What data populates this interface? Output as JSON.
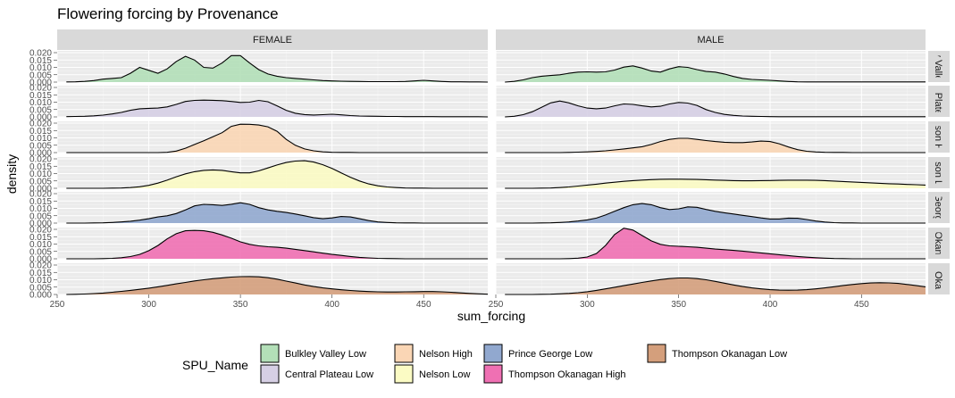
{
  "chart_data": {
    "type": "area",
    "title": "Flowering forcing by Provenance",
    "xlabel": "sum_forcing",
    "ylabel": "density",
    "xlim": [
      250,
      485
    ],
    "ylim": [
      0,
      0.02
    ],
    "x_ticks": [
      250,
      300,
      350,
      400,
      450
    ],
    "y_ticks": [
      "0.000",
      "0.005",
      "0.010",
      "0.015",
      "0.020"
    ],
    "columns": [
      "FEMALE",
      "MALE"
    ],
    "rows": [
      "y Valle",
      "l Plate",
      "lson H",
      "lson L",
      "Georg",
      "Okan",
      "n Okan"
    ],
    "legend": {
      "title": "SPU_Name",
      "entries": [
        {
          "name": "Bulkley Valley Low",
          "color": "#b3dfb8"
        },
        {
          "name": "Central Plateau Low",
          "color": "#d6cfe4"
        },
        {
          "name": "Nelson High",
          "color": "#fad6b5"
        },
        {
          "name": "Nelson Low",
          "color": "#fbfbc4"
        },
        {
          "name": "Prince George Low",
          "color": "#91a8cf"
        },
        {
          "name": "Thompson Okanagan High",
          "color": "#ef70b3"
        },
        {
          "name": "Thompson Okanagan Low",
          "color": "#d49f7c"
        }
      ]
    },
    "x": [
      255,
      260,
      265,
      270,
      275,
      280,
      285,
      290,
      295,
      300,
      305,
      310,
      315,
      320,
      325,
      330,
      335,
      340,
      345,
      350,
      355,
      360,
      365,
      370,
      375,
      380,
      385,
      390,
      395,
      400,
      405,
      410,
      415,
      420,
      425,
      430,
      435,
      440,
      445,
      450,
      455,
      460,
      465,
      470,
      475,
      480,
      485
    ],
    "panels": [
      {
        "row": 0,
        "col": 0,
        "y": [
          0.0001,
          0.0002,
          0.0005,
          0.001,
          0.002,
          0.0025,
          0.003,
          0.006,
          0.01,
          0.008,
          0.006,
          0.009,
          0.014,
          0.0175,
          0.015,
          0.01,
          0.0095,
          0.013,
          0.018,
          0.018,
          0.013,
          0.0085,
          0.0055,
          0.004,
          0.003,
          0.0025,
          0.002,
          0.0015,
          0.001,
          0.0008,
          0.0006,
          0.0005,
          0.0004,
          0.0003,
          0.0003,
          0.0003,
          0.0003,
          0.0004,
          0.0008,
          0.0012,
          0.0008,
          0.0004,
          0.0002,
          0.0002,
          0.0001,
          0.0001,
          0
        ]
      },
      {
        "row": 0,
        "col": 1,
        "y": [
          0,
          0.0005,
          0.0015,
          0.003,
          0.004,
          0.0045,
          0.005,
          0.006,
          0.0068,
          0.007,
          0.0068,
          0.007,
          0.0082,
          0.0102,
          0.011,
          0.0095,
          0.0075,
          0.0068,
          0.009,
          0.0105,
          0.01,
          0.0085,
          0.0072,
          0.0068,
          0.0055,
          0.0038,
          0.0025,
          0.0018,
          0.0015,
          0.0012,
          0.0008,
          0.0004,
          0.0002,
          0.0001,
          0.0001,
          0.0001,
          0.0001,
          0.0001,
          0.0001,
          0.0001,
          0.0001,
          0.0001,
          0.0001,
          0.0001,
          0.0001,
          0.0001,
          0.0001
        ]
      },
      {
        "row": 1,
        "col": 0,
        "y": [
          0.0002,
          0.0003,
          0.0004,
          0.0007,
          0.0012,
          0.002,
          0.003,
          0.0045,
          0.0055,
          0.0058,
          0.006,
          0.0068,
          0.0085,
          0.0105,
          0.0112,
          0.0114,
          0.0113,
          0.011,
          0.0105,
          0.0098,
          0.01,
          0.0112,
          0.0103,
          0.0075,
          0.0045,
          0.0025,
          0.0016,
          0.0013,
          0.0015,
          0.0018,
          0.0014,
          0.0009,
          0.0006,
          0.0005,
          0.0004,
          0.0003,
          0.0003,
          0.0002,
          0.0002,
          0.0002,
          0.0002,
          0.0001,
          0.0001,
          0.0001,
          0.0001,
          0.0001,
          0
        ]
      },
      {
        "row": 1,
        "col": 1,
        "y": [
          0,
          0.0004,
          0.0015,
          0.0035,
          0.0065,
          0.0095,
          0.0108,
          0.0095,
          0.0075,
          0.006,
          0.0055,
          0.006,
          0.0075,
          0.0088,
          0.0085,
          0.0075,
          0.0068,
          0.0072,
          0.0088,
          0.0098,
          0.0094,
          0.0078,
          0.005,
          0.003,
          0.0017,
          0.001,
          0.0006,
          0.0004,
          0.0003,
          0.0002,
          0.0001,
          0.0001,
          0.0001,
          0.0001,
          0.0001,
          0.0001,
          0.0001,
          0.0001,
          0.0001,
          0.0001,
          0.0001,
          0.0001,
          0.0001,
          0.0001,
          0.0001,
          0.0001,
          0.0001
        ]
      },
      {
        "row": 2,
        "col": 0,
        "y": [
          0,
          0,
          0,
          0,
          0,
          0,
          0,
          0,
          0,
          0,
          0,
          0.0002,
          0.001,
          0.003,
          0.0055,
          0.008,
          0.0108,
          0.0135,
          0.0178,
          0.0193,
          0.0192,
          0.0187,
          0.0175,
          0.0145,
          0.009,
          0.005,
          0.0025,
          0.0012,
          0.0005,
          0.0002,
          0.0001,
          0.0001,
          0,
          0,
          0,
          0,
          0,
          0,
          0,
          0,
          0,
          0,
          0,
          0,
          0,
          0,
          0
        ]
      },
      {
        "row": 2,
        "col": 1,
        "y": [
          0,
          0,
          0,
          0,
          0,
          0,
          0,
          0.0001,
          0.0003,
          0.0005,
          0.0008,
          0.0012,
          0.0018,
          0.0025,
          0.0032,
          0.004,
          0.0055,
          0.0075,
          0.009,
          0.0097,
          0.0097,
          0.009,
          0.0082,
          0.0075,
          0.007,
          0.0068,
          0.0068,
          0.0072,
          0.0078,
          0.0075,
          0.006,
          0.0038,
          0.002,
          0.0009,
          0.0004,
          0.0002,
          0.0001,
          0.0001,
          0,
          0,
          0,
          0,
          0,
          0,
          0,
          0,
          0
        ]
      },
      {
        "row": 3,
        "col": 0,
        "y": [
          0,
          0,
          0,
          0,
          0,
          0.0001,
          0.0002,
          0.0005,
          0.001,
          0.002,
          0.0035,
          0.0055,
          0.0078,
          0.0098,
          0.0113,
          0.0122,
          0.0125,
          0.0122,
          0.0113,
          0.0105,
          0.0105,
          0.0118,
          0.0138,
          0.0158,
          0.0175,
          0.0185,
          0.0187,
          0.0178,
          0.016,
          0.0135,
          0.0105,
          0.0075,
          0.005,
          0.003,
          0.0017,
          0.0009,
          0.0005,
          0.0002,
          0.0001,
          0.0001,
          0,
          0,
          0,
          0,
          0,
          0,
          0
        ]
      },
      {
        "row": 3,
        "col": 1,
        "y": [
          0,
          0,
          0,
          0,
          0.0001,
          0.0002,
          0.0005,
          0.0009,
          0.0015,
          0.0022,
          0.0028,
          0.0035,
          0.0041,
          0.0047,
          0.0052,
          0.0056,
          0.0059,
          0.0061,
          0.0062,
          0.0062,
          0.0061,
          0.006,
          0.0058,
          0.0056,
          0.0054,
          0.0052,
          0.0051,
          0.0051,
          0.0052,
          0.0053,
          0.0054,
          0.0055,
          0.0055,
          0.0055,
          0.0054,
          0.0052,
          0.0049,
          0.0046,
          0.0043,
          0.004,
          0.0037,
          0.0034,
          0.0031,
          0.0029,
          0.0026,
          0.0024,
          0.0022
        ]
      },
      {
        "row": 4,
        "col": 0,
        "y": [
          0,
          0,
          0,
          0.0001,
          0.0002,
          0.0004,
          0.0008,
          0.0013,
          0.002,
          0.003,
          0.0042,
          0.005,
          0.0065,
          0.009,
          0.0117,
          0.0127,
          0.0125,
          0.012,
          0.0128,
          0.0138,
          0.0127,
          0.0105,
          0.009,
          0.008,
          0.0072,
          0.0062,
          0.005,
          0.0037,
          0.003,
          0.0035,
          0.0045,
          0.0042,
          0.003,
          0.0017,
          0.0008,
          0.0004,
          0.0002,
          0.0001,
          0.0001,
          0,
          0,
          0,
          0,
          0,
          0,
          0,
          0
        ]
      },
      {
        "row": 4,
        "col": 1,
        "y": [
          0,
          0,
          0,
          0,
          0.0001,
          0.0002,
          0.0004,
          0.0008,
          0.0014,
          0.0022,
          0.0034,
          0.0055,
          0.008,
          0.0105,
          0.0125,
          0.0133,
          0.0125,
          0.0105,
          0.0092,
          0.0097,
          0.011,
          0.0107,
          0.0093,
          0.008,
          0.007,
          0.0062,
          0.0053,
          0.0044,
          0.0035,
          0.0028,
          0.0028,
          0.0034,
          0.0033,
          0.0024,
          0.0014,
          0.0007,
          0.0003,
          0.0001,
          0.0001,
          0,
          0,
          0,
          0,
          0,
          0,
          0,
          0
        ]
      },
      {
        "row": 5,
        "col": 0,
        "y": [
          0,
          0,
          0,
          0,
          0.0001,
          0.0003,
          0.0007,
          0.0015,
          0.003,
          0.0055,
          0.009,
          0.0135,
          0.017,
          0.019,
          0.0193,
          0.019,
          0.018,
          0.0162,
          0.014,
          0.0115,
          0.0098,
          0.0088,
          0.0082,
          0.0078,
          0.0072,
          0.0064,
          0.0056,
          0.0047,
          0.0038,
          0.003,
          0.0023,
          0.0016,
          0.001,
          0.0006,
          0.0003,
          0.0002,
          0.0001,
          0,
          0,
          0,
          0,
          0,
          0,
          0,
          0,
          0,
          0
        ]
      },
      {
        "row": 5,
        "col": 1,
        "y": [
          0,
          0,
          0,
          0,
          0,
          0,
          0,
          0.0001,
          0.0004,
          0.0012,
          0.0035,
          0.009,
          0.0165,
          0.0208,
          0.0195,
          0.0158,
          0.0122,
          0.0098,
          0.0088,
          0.0085,
          0.0082,
          0.0078,
          0.0072,
          0.0066,
          0.0062,
          0.0057,
          0.0052,
          0.0046,
          0.004,
          0.0034,
          0.0028,
          0.0022,
          0.0016,
          0.0011,
          0.0007,
          0.0004,
          0.0002,
          0.0001,
          0,
          0,
          0,
          0,
          0,
          0,
          0,
          0,
          0
        ]
      },
      {
        "row": 6,
        "col": 0,
        "y": [
          0,
          0.0001,
          0.0003,
          0.0006,
          0.001,
          0.0015,
          0.0021,
          0.0028,
          0.0035,
          0.0043,
          0.0052,
          0.0062,
          0.0072,
          0.0082,
          0.0092,
          0.01,
          0.0107,
          0.0113,
          0.0118,
          0.0121,
          0.0122,
          0.012,
          0.0114,
          0.0104,
          0.0091,
          0.0078,
          0.0065,
          0.0054,
          0.0045,
          0.0038,
          0.0032,
          0.0027,
          0.0023,
          0.002,
          0.0018,
          0.0017,
          0.0017,
          0.0018,
          0.0019,
          0.002,
          0.002,
          0.0018,
          0.0015,
          0.0011,
          0.0007,
          0.0004,
          0.0002
        ]
      },
      {
        "row": 6,
        "col": 1,
        "y": [
          0,
          0,
          0,
          0,
          0.0001,
          0.0002,
          0.0004,
          0.0007,
          0.0012,
          0.0019,
          0.0028,
          0.0038,
          0.0049,
          0.006,
          0.0071,
          0.0082,
          0.0092,
          0.0101,
          0.0108,
          0.0112,
          0.0112,
          0.0108,
          0.01,
          0.0089,
          0.0077,
          0.0065,
          0.0054,
          0.0045,
          0.0038,
          0.0033,
          0.003,
          0.0029,
          0.003,
          0.0033,
          0.0038,
          0.0045,
          0.0053,
          0.0061,
          0.0068,
          0.0074,
          0.0078,
          0.008,
          0.0079,
          0.0075,
          0.0068,
          0.006,
          0.0052
        ]
      }
    ]
  }
}
